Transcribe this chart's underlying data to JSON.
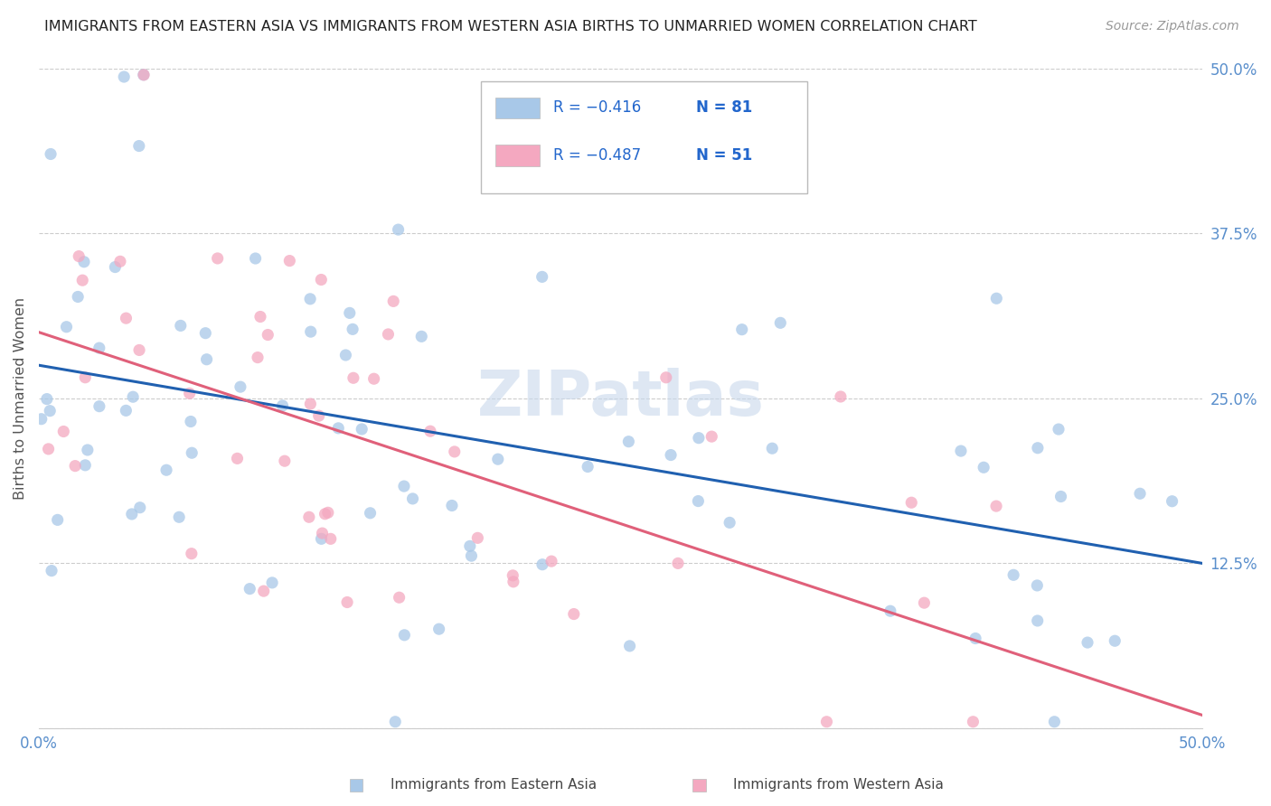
{
  "title": "IMMIGRANTS FROM EASTERN ASIA VS IMMIGRANTS FROM WESTERN ASIA BIRTHS TO UNMARRIED WOMEN CORRELATION CHART",
  "source": "Source: ZipAtlas.com",
  "ylabel": "Births to Unmarried Women",
  "xlim": [
    0.0,
    0.5
  ],
  "ylim": [
    0.0,
    0.5
  ],
  "xticks": [
    0.0,
    0.125,
    0.25,
    0.375,
    0.5
  ],
  "xticklabels": [
    "0.0%",
    "",
    "",
    "",
    "50.0%"
  ],
  "yticks": [
    0.0,
    0.125,
    0.25,
    0.375,
    0.5
  ],
  "ytick_right_labels": [
    "",
    "12.5%",
    "25.0%",
    "37.5%",
    "50.0%"
  ],
  "ytick_left_labels": [
    "",
    "",
    "",
    "",
    ""
  ],
  "legend_labels": [
    "Immigrants from Eastern Asia",
    "Immigrants from Western Asia"
  ],
  "legend_r": [
    "R = −0.416",
    "R = −0.487"
  ],
  "legend_n": [
    "N = 81",
    "N = 51"
  ],
  "blue_color": "#A8C8E8",
  "pink_color": "#F4A8C0",
  "blue_line_color": "#2060B0",
  "pink_line_color": "#E0607A",
  "watermark": "ZIPatlas",
  "title_fontsize": 11.5,
  "source_fontsize": 10,
  "blue_N": 81,
  "pink_N": 51,
  "blue_intercept": 0.275,
  "blue_slope": -0.3,
  "pink_intercept": 0.3,
  "pink_slope": -0.58,
  "tick_color": "#5a8fcc",
  "grid_color": "#cccccc",
  "legend_r_color": "#2266cc"
}
